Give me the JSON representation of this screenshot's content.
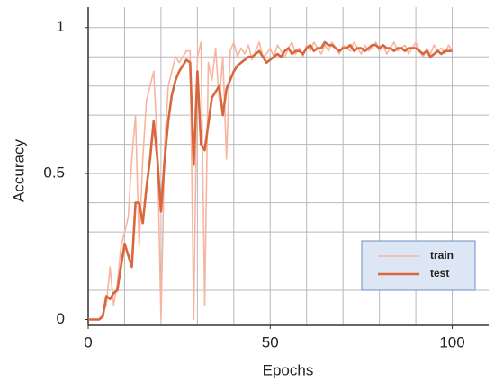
{
  "chart_data": {
    "type": "line",
    "x_label": "Epochs",
    "y_label": "Accuracy",
    "xlim": [
      0,
      110
    ],
    "ylim": [
      -0.02,
      1.07
    ],
    "xticks": [
      0,
      50,
      100
    ],
    "yticks": [
      0,
      0.5,
      1
    ],
    "xgrid": [
      10,
      20,
      30,
      40,
      50,
      60,
      70,
      80,
      90,
      100
    ],
    "ygrid": [
      0.1,
      0.2,
      0.3,
      0.4,
      0.5,
      0.6,
      0.7,
      0.8,
      0.9,
      1
    ],
    "grid": true,
    "legend_position": "lower right",
    "x": [
      0,
      1,
      2,
      3,
      4,
      5,
      6,
      7,
      8,
      9,
      10,
      11,
      12,
      13,
      14,
      15,
      16,
      17,
      18,
      19,
      20,
      21,
      22,
      23,
      24,
      25,
      26,
      27,
      28,
      29,
      30,
      31,
      32,
      33,
      34,
      35,
      36,
      37,
      38,
      39,
      40,
      41,
      42,
      43,
      44,
      45,
      46,
      47,
      48,
      49,
      50,
      51,
      52,
      53,
      54,
      55,
      56,
      57,
      58,
      59,
      60,
      61,
      62,
      63,
      64,
      65,
      66,
      67,
      68,
      69,
      70,
      71,
      72,
      73,
      74,
      75,
      76,
      77,
      78,
      79,
      80,
      81,
      82,
      83,
      84,
      85,
      86,
      87,
      88,
      89,
      90,
      91,
      92,
      93,
      94,
      95,
      96,
      97,
      98,
      99,
      100
    ],
    "series": [
      {
        "name": "train",
        "color": "#f7b5a0",
        "width": 1.6,
        "values": [
          0,
          0,
          0,
          0,
          0.02,
          0.05,
          0.18,
          0.05,
          0.12,
          0.25,
          0.3,
          0.35,
          0.55,
          0.7,
          0.25,
          0.55,
          0.75,
          0.8,
          0.85,
          0.6,
          0.0,
          0.6,
          0.8,
          0.85,
          0.9,
          0.88,
          0.9,
          0.92,
          0.92,
          0.0,
          0.9,
          0.95,
          0.05,
          0.88,
          0.82,
          0.93,
          0.75,
          0.9,
          0.55,
          0.92,
          0.95,
          0.9,
          0.93,
          0.91,
          0.94,
          0.89,
          0.92,
          0.95,
          0.9,
          0.91,
          0.93,
          0.9,
          0.94,
          0.92,
          0.9,
          0.93,
          0.95,
          0.91,
          0.93,
          0.9,
          0.94,
          0.92,
          0.95,
          0.93,
          0.91,
          0.94,
          0.92,
          0.95,
          0.93,
          0.91,
          0.94,
          0.93,
          0.92,
          0.95,
          0.93,
          0.91,
          0.94,
          0.92,
          0.93,
          0.95,
          0.92,
          0.94,
          0.91,
          0.93,
          0.95,
          0.92,
          0.93,
          0.94,
          0.91,
          0.93,
          0.95,
          0.92,
          0.9,
          0.93,
          0.91,
          0.94,
          0.92,
          0.93,
          0.91,
          0.94,
          0.92
        ]
      },
      {
        "name": "test",
        "color": "#d9673e",
        "width": 2.6,
        "values": [
          0,
          0,
          0,
          0,
          0.01,
          0.08,
          0.07,
          0.09,
          0.1,
          0.18,
          0.26,
          0.22,
          0.18,
          0.4,
          0.4,
          0.33,
          0.45,
          0.55,
          0.68,
          0.55,
          0.37,
          0.55,
          0.68,
          0.77,
          0.82,
          0.85,
          0.87,
          0.89,
          0.88,
          0.53,
          0.85,
          0.6,
          0.58,
          0.67,
          0.76,
          0.78,
          0.8,
          0.7,
          0.79,
          0.82,
          0.85,
          0.87,
          0.88,
          0.89,
          0.9,
          0.9,
          0.91,
          0.92,
          0.9,
          0.88,
          0.89,
          0.9,
          0.91,
          0.9,
          0.92,
          0.93,
          0.91,
          0.92,
          0.92,
          0.91,
          0.93,
          0.94,
          0.92,
          0.93,
          0.93,
          0.95,
          0.94,
          0.94,
          0.93,
          0.92,
          0.93,
          0.93,
          0.94,
          0.92,
          0.93,
          0.93,
          0.92,
          0.93,
          0.94,
          0.94,
          0.93,
          0.94,
          0.93,
          0.93,
          0.92,
          0.93,
          0.93,
          0.92,
          0.93,
          0.93,
          0.93,
          0.92,
          0.91,
          0.92,
          0.9,
          0.91,
          0.92,
          0.91,
          0.92,
          0.92,
          0.92
        ]
      }
    ]
  }
}
